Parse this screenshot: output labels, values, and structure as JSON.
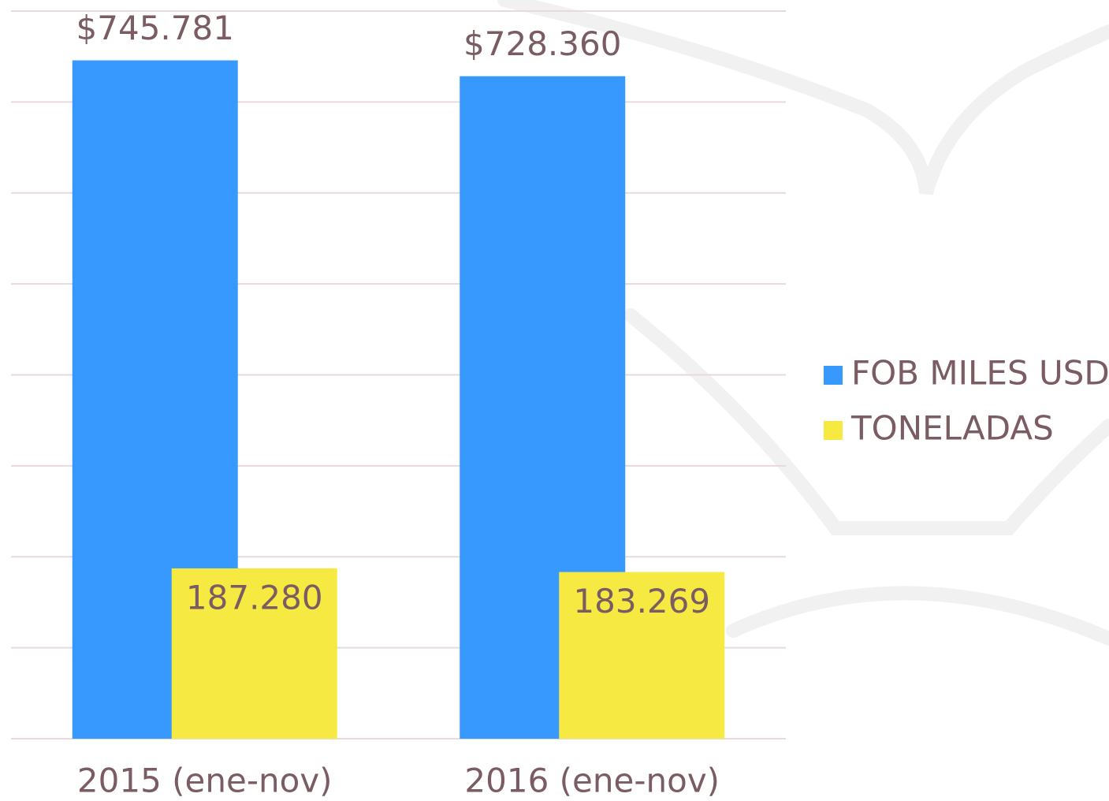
{
  "chart_data": {
    "type": "bar",
    "categories": [
      "2015 (ene-nov)",
      "2016 (ene-nov)"
    ],
    "series": [
      {
        "name": "FOB MILES USD",
        "color": "#3799fd",
        "values": [
          745781,
          728360
        ],
        "value_labels": [
          "$745.781",
          "$728.360"
        ]
      },
      {
        "name": "TONELADAS",
        "color": "#f6e942",
        "values": [
          187280,
          183269
        ],
        "value_labels": [
          "187.280",
          "183.269"
        ]
      }
    ],
    "ylim": [
      0,
      800000
    ],
    "yticks": [
      0,
      100000,
      200000,
      300000,
      400000,
      500000,
      600000,
      700000,
      800000
    ],
    "grid": true,
    "legend": "right"
  }
}
